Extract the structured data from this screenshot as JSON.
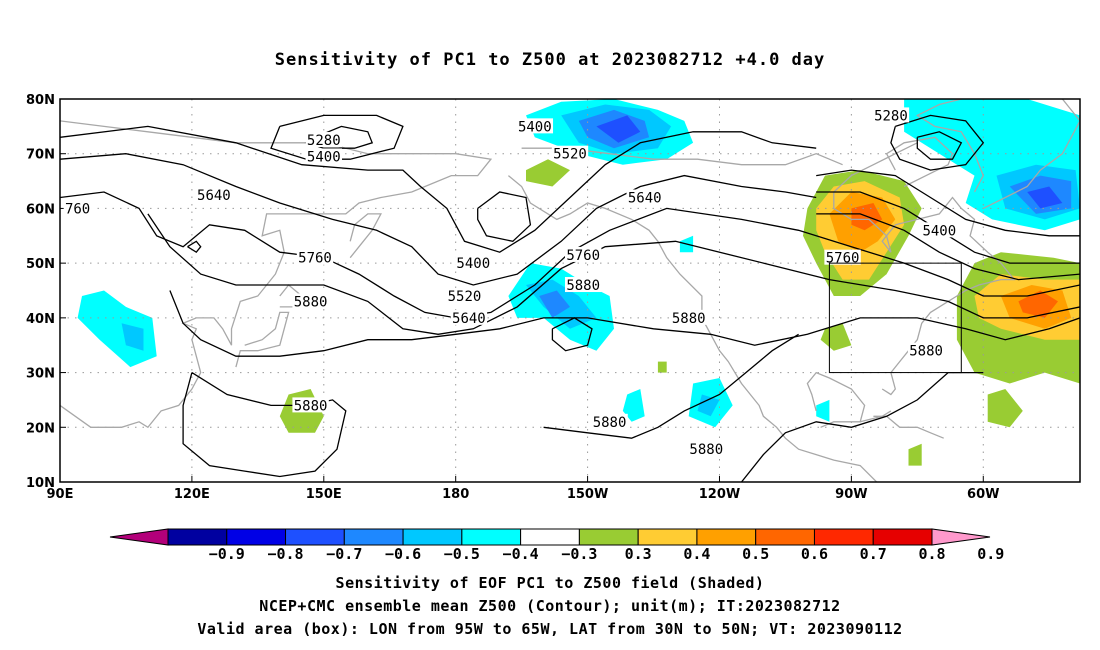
{
  "title": "Sensitivity of PC1 to Z500 at 2023082712 +4.0 day",
  "lat_labels": [
    "80N",
    "70N",
    "60N",
    "50N",
    "40N",
    "30N",
    "20N",
    "10N"
  ],
  "lon_labels": [
    "90E",
    "120E",
    "150E",
    "180",
    "150W",
    "120W",
    "90W",
    "60W"
  ],
  "contour_labels": [
    {
      "text": "5280",
      "lon": 150,
      "lat": 72.5
    },
    {
      "text": "5400",
      "lon": 150,
      "lat": 69.5
    },
    {
      "text": "5640",
      "lon": 125,
      "lat": 62.5
    },
    {
      "text": "760",
      "lon": 94,
      "lat": 60
    },
    {
      "text": "5760",
      "lon": 148,
      "lat": 51
    },
    {
      "text": "5880",
      "lon": 147,
      "lat": 43
    },
    {
      "text": "5880",
      "lon": 147,
      "lat": 24
    },
    {
      "text": "5400",
      "lon": 198,
      "lat": 75
    },
    {
      "text": "5520",
      "lon": 206,
      "lat": 70
    },
    {
      "text": "5640",
      "lon": 223,
      "lat": 62
    },
    {
      "text": "5760",
      "lon": 209,
      "lat": 51.5
    },
    {
      "text": "5880",
      "lon": 209,
      "lat": 46
    },
    {
      "text": "5400",
      "lon": 184,
      "lat": 50
    },
    {
      "text": "5520",
      "lon": 182,
      "lat": 44
    },
    {
      "text": "5640",
      "lon": 183,
      "lat": 40
    },
    {
      "text": "5880",
      "lon": 233,
      "lat": 40
    },
    {
      "text": "5880",
      "lon": 215,
      "lat": 21
    },
    {
      "text": "5880",
      "lon": 237,
      "lat": 16
    },
    {
      "text": "5760",
      "lon": 268,
      "lat": 51
    },
    {
      "text": "5280",
      "lon": 279,
      "lat": 77
    },
    {
      "text": "5400",
      "lon": 290,
      "lat": 56
    },
    {
      "text": "5880",
      "lon": 287,
      "lat": 34
    }
  ],
  "colorbar": {
    "colors": [
      "#b3007a",
      "#0000a0",
      "#0000e6",
      "#1e50ff",
      "#1e88ff",
      "#00c8ff",
      "#00ffff",
      "#ffffff",
      "#99cc33",
      "#ffcc33",
      "#ffa000",
      "#ff6600",
      "#ff2800",
      "#e60000",
      "#ff99cc"
    ],
    "labels": [
      "−0.9",
      "−0.8",
      "−0.7",
      "−0.6",
      "−0.5",
      "−0.4",
      "−0.3",
      "0.3",
      "0.4",
      "0.5",
      "0.6",
      "0.7",
      "0.8",
      "0.9"
    ]
  },
  "box": {
    "lon_min": 265,
    "lon_max": 295,
    "lat_min": 30,
    "lat_max": 50
  },
  "footer": {
    "line1": "Sensitivity of EOF PC1 to Z500 field (Shaded)",
    "line2": "NCEP+CMC ensemble mean Z500 (Contour); unit(m); IT:2023082712",
    "line3": "Valid area (box): LON from 95W to 65W, LAT from 30N to 50N; VT: 2023090112"
  }
}
